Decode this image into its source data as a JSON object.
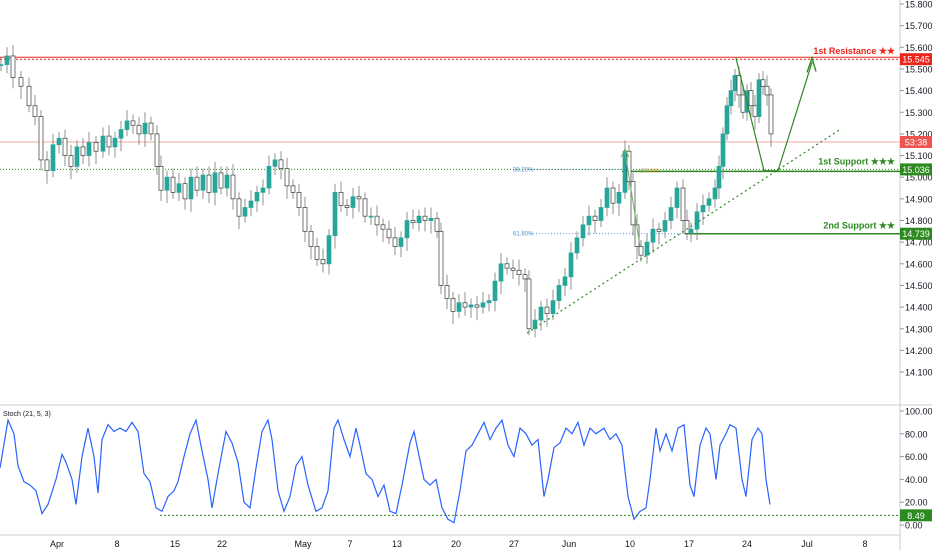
{
  "chart_data": [
    {
      "type": "candlestick",
      "title": "",
      "y_ticks": [
        "15.800",
        "15.700",
        "15.600",
        "15.500",
        "15.400",
        "15.300",
        "15.200",
        "15.100",
        "15.000",
        "14.900",
        "14.800",
        "14.700",
        "14.600",
        "14.500",
        "14.400",
        "14.300",
        "14.200",
        "14.100"
      ],
      "ylim": [
        14.1,
        15.83
      ],
      "x_ticks": [
        "Apr",
        "8",
        "15",
        "22",
        "May",
        "7",
        "13",
        "20",
        "27",
        "Jun",
        "10",
        "17",
        "24",
        "Jul",
        "8"
      ],
      "price_path": [
        [
          0,
          15.52
        ],
        [
          6,
          15.56
        ],
        [
          12,
          15.46
        ],
        [
          20,
          15.42
        ],
        [
          28,
          15.33
        ],
        [
          34,
          15.28
        ],
        [
          40,
          15.08
        ],
        [
          46,
          15.03
        ],
        [
          52,
          15.15
        ],
        [
          58,
          15.18
        ],
        [
          64,
          15.1
        ],
        [
          70,
          15.05
        ],
        [
          76,
          15.14
        ],
        [
          82,
          15.1
        ],
        [
          88,
          15.16
        ],
        [
          95,
          15.12
        ],
        [
          102,
          15.19
        ],
        [
          108,
          15.14
        ],
        [
          114,
          15.18
        ],
        [
          120,
          15.22
        ],
        [
          126,
          15.26
        ],
        [
          132,
          15.24
        ],
        [
          138,
          15.2
        ],
        [
          144,
          15.25
        ],
        [
          150,
          15.2
        ],
        [
          156,
          15.05
        ],
        [
          160,
          14.94
        ],
        [
          166,
          15.0
        ],
        [
          172,
          14.93
        ],
        [
          178,
          14.97
        ],
        [
          184,
          14.9
        ],
        [
          190,
          15.0
        ],
        [
          196,
          14.94
        ],
        [
          202,
          15.01
        ],
        [
          208,
          14.93
        ],
        [
          214,
          15.02
        ],
        [
          220,
          14.95
        ],
        [
          226,
          15.01
        ],
        [
          232,
          14.9
        ],
        [
          238,
          14.82
        ],
        [
          244,
          14.86
        ],
        [
          250,
          14.89
        ],
        [
          256,
          14.93
        ],
        [
          262,
          14.95
        ],
        [
          268,
          15.05
        ],
        [
          274,
          15.08
        ],
        [
          280,
          15.04
        ],
        [
          286,
          14.96
        ],
        [
          292,
          14.93
        ],
        [
          298,
          14.86
        ],
        [
          304,
          14.75
        ],
        [
          310,
          14.68
        ],
        [
          316,
          14.62
        ],
        [
          322,
          14.6
        ],
        [
          328,
          14.73
        ],
        [
          334,
          14.93
        ],
        [
          340,
          14.87
        ],
        [
          346,
          14.86
        ],
        [
          352,
          14.91
        ],
        [
          358,
          14.9
        ],
        [
          364,
          14.82
        ],
        [
          370,
          14.82
        ],
        [
          376,
          14.78
        ],
        [
          382,
          14.76
        ],
        [
          388,
          14.72
        ],
        [
          394,
          14.68
        ],
        [
          400,
          14.72
        ],
        [
          406,
          14.8
        ],
        [
          412,
          14.79
        ],
        [
          418,
          14.82
        ],
        [
          424,
          14.8
        ],
        [
          430,
          14.81
        ],
        [
          436,
          14.75
        ],
        [
          440,
          14.5
        ],
        [
          446,
          14.44
        ],
        [
          452,
          14.38
        ],
        [
          458,
          14.42
        ],
        [
          464,
          14.4
        ],
        [
          470,
          14.41
        ],
        [
          476,
          14.4
        ],
        [
          482,
          14.42
        ],
        [
          488,
          14.43
        ],
        [
          494,
          14.52
        ],
        [
          500,
          14.6
        ],
        [
          506,
          14.58
        ],
        [
          512,
          14.57
        ],
        [
          518,
          14.55
        ],
        [
          524,
          14.53
        ],
        [
          528,
          14.3
        ],
        [
          534,
          14.34
        ],
        [
          540,
          14.4
        ],
        [
          546,
          14.37
        ],
        [
          552,
          14.43
        ],
        [
          558,
          14.5
        ],
        [
          564,
          14.54
        ],
        [
          570,
          14.65
        ],
        [
          576,
          14.72
        ],
        [
          582,
          14.78
        ],
        [
          588,
          14.82
        ],
        [
          594,
          14.8
        ],
        [
          600,
          14.86
        ],
        [
          606,
          14.95
        ],
        [
          612,
          14.88
        ],
        [
          618,
          14.93
        ],
        [
          624,
          15.12
        ],
        [
          628,
          14.98
        ],
        [
          632,
          14.78
        ],
        [
          636,
          14.68
        ],
        [
          640,
          14.64
        ],
        [
          646,
          14.7
        ],
        [
          652,
          14.76
        ],
        [
          658,
          14.75
        ],
        [
          664,
          14.8
        ],
        [
          670,
          14.86
        ],
        [
          676,
          14.95
        ],
        [
          682,
          14.8
        ],
        [
          686,
          14.74
        ],
        [
          690,
          14.76
        ],
        [
          696,
          14.84
        ],
        [
          702,
          14.87
        ],
        [
          708,
          14.9
        ],
        [
          714,
          14.95
        ],
        [
          718,
          15.05
        ],
        [
          722,
          15.2
        ],
        [
          726,
          15.33
        ],
        [
          730,
          15.4
        ],
        [
          734,
          15.47
        ],
        [
          738,
          15.38
        ],
        [
          742,
          15.3
        ],
        [
          746,
          15.4
        ],
        [
          750,
          15.33
        ],
        [
          754,
          15.28
        ],
        [
          758,
          15.45
        ],
        [
          762,
          15.42
        ],
        [
          766,
          15.38
        ],
        [
          770,
          15.2
        ]
      ],
      "current_price": "53:38",
      "levels": [
        {
          "label": "1st Resistance ★★",
          "value": 15.545,
          "value_label": "15.545",
          "color": "#e8261c"
        },
        {
          "label": "1st Support ★★★",
          "value": 15.036,
          "value_label": "15.036",
          "color": "#2d8a20"
        },
        {
          "label": "2nd Support ★★",
          "value": 14.739,
          "value_label": "14.739",
          "color": "#2d8a20"
        }
      ],
      "fibonacci": [
        {
          "label": "38.20%",
          "value": 15.036
        },
        {
          "label": "61.80%",
          "value": 14.739
        },
        {
          "label": "100.00%",
          "value": 15.036
        }
      ],
      "indicator": {
        "name": "Stoch (21, 5, 3)",
        "y_ticks": [
          "100.00",
          "80.00",
          "60.00",
          "40.00",
          "20.00",
          "0.00"
        ],
        "ylim": [
          0,
          100
        ],
        "current_value": "8.49",
        "k_series": [
          [
            0,
            50
          ],
          [
            8,
            92
          ],
          [
            14,
            80
          ],
          [
            18,
            52
          ],
          [
            24,
            38
          ],
          [
            30,
            35
          ],
          [
            36,
            30
          ],
          [
            42,
            10
          ],
          [
            48,
            18
          ],
          [
            56,
            40
          ],
          [
            62,
            62
          ],
          [
            66,
            55
          ],
          [
            72,
            40
          ],
          [
            76,
            18
          ],
          [
            82,
            60
          ],
          [
            88,
            85
          ],
          [
            94,
            60
          ],
          [
            98,
            28
          ],
          [
            102,
            75
          ],
          [
            108,
            88
          ],
          [
            114,
            82
          ],
          [
            120,
            85
          ],
          [
            126,
            82
          ],
          [
            132,
            90
          ],
          [
            138,
            82
          ],
          [
            144,
            45
          ],
          [
            150,
            38
          ],
          [
            156,
            15
          ],
          [
            162,
            12
          ],
          [
            168,
            25
          ],
          [
            174,
            30
          ],
          [
            178,
            38
          ],
          [
            184,
            60
          ],
          [
            190,
            80
          ],
          [
            196,
            92
          ],
          [
            202,
            65
          ],
          [
            208,
            40
          ],
          [
            212,
            15
          ],
          [
            218,
            45
          ],
          [
            226,
            82
          ],
          [
            232,
            72
          ],
          [
            238,
            55
          ],
          [
            244,
            20
          ],
          [
            250,
            15
          ],
          [
            256,
            50
          ],
          [
            262,
            82
          ],
          [
            268,
            92
          ],
          [
            272,
            75
          ],
          [
            278,
            30
          ],
          [
            284,
            12
          ],
          [
            290,
            25
          ],
          [
            296,
            52
          ],
          [
            302,
            60
          ],
          [
            308,
            35
          ],
          [
            316,
            12
          ],
          [
            322,
            15
          ],
          [
            328,
            30
          ],
          [
            334,
            85
          ],
          [
            338,
            92
          ],
          [
            344,
            75
          ],
          [
            350,
            60
          ],
          [
            356,
            85
          ],
          [
            360,
            70
          ],
          [
            366,
            45
          ],
          [
            372,
            40
          ],
          [
            378,
            25
          ],
          [
            384,
            35
          ],
          [
            390,
            12
          ],
          [
            396,
            10
          ],
          [
            402,
            35
          ],
          [
            410,
            72
          ],
          [
            414,
            82
          ],
          [
            418,
            65
          ],
          [
            424,
            40
          ],
          [
            430,
            35
          ],
          [
            436,
            40
          ],
          [
            442,
            15
          ],
          [
            448,
            5
          ],
          [
            454,
            2
          ],
          [
            460,
            30
          ],
          [
            466,
            65
          ],
          [
            472,
            70
          ],
          [
            478,
            80
          ],
          [
            484,
            90
          ],
          [
            490,
            75
          ],
          [
            496,
            85
          ],
          [
            502,
            92
          ],
          [
            508,
            70
          ],
          [
            514,
            60
          ],
          [
            520,
            85
          ],
          [
            526,
            80
          ],
          [
            532,
            70
          ],
          [
            538,
            75
          ],
          [
            544,
            25
          ],
          [
            548,
            40
          ],
          [
            554,
            68
          ],
          [
            560,
            72
          ],
          [
            566,
            85
          ],
          [
            572,
            80
          ],
          [
            578,
            90
          ],
          [
            584,
            70
          ],
          [
            590,
            85
          ],
          [
            596,
            80
          ],
          [
            604,
            85
          ],
          [
            610,
            75
          ],
          [
            616,
            80
          ],
          [
            622,
            70
          ],
          [
            628,
            25
          ],
          [
            634,
            5
          ],
          [
            640,
            12
          ],
          [
            646,
            15
          ],
          [
            650,
            40
          ],
          [
            656,
            85
          ],
          [
            660,
            65
          ],
          [
            666,
            80
          ],
          [
            672,
            65
          ],
          [
            678,
            85
          ],
          [
            684,
            88
          ],
          [
            690,
            35
          ],
          [
            694,
            25
          ],
          [
            700,
            70
          ],
          [
            706,
            85
          ],
          [
            710,
            80
          ],
          [
            716,
            40
          ],
          [
            720,
            70
          ],
          [
            726,
            80
          ],
          [
            730,
            88
          ],
          [
            736,
            85
          ],
          [
            742,
            40
          ],
          [
            746,
            25
          ],
          [
            752,
            75
          ],
          [
            758,
            85
          ],
          [
            762,
            80
          ],
          [
            766,
            40
          ],
          [
            770,
            18
          ]
        ]
      }
    }
  ]
}
